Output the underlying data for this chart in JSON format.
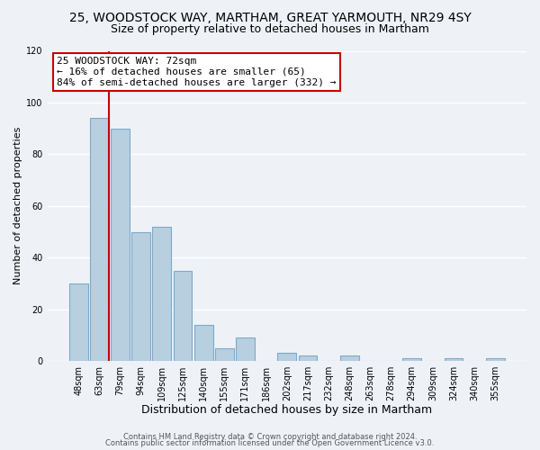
{
  "title_line1": "25, WOODSTOCK WAY, MARTHAM, GREAT YARMOUTH, NR29 4SY",
  "title_line2": "Size of property relative to detached houses in Martham",
  "xlabel": "Distribution of detached houses by size in Martham",
  "ylabel": "Number of detached properties",
  "bar_labels": [
    "48sqm",
    "63sqm",
    "79sqm",
    "94sqm",
    "109sqm",
    "125sqm",
    "140sqm",
    "155sqm",
    "171sqm",
    "186sqm",
    "202sqm",
    "217sqm",
    "232sqm",
    "248sqm",
    "263sqm",
    "278sqm",
    "294sqm",
    "309sqm",
    "324sqm",
    "340sqm",
    "355sqm"
  ],
  "bar_values": [
    30,
    94,
    90,
    50,
    52,
    35,
    14,
    5,
    9,
    0,
    3,
    2,
    0,
    2,
    0,
    0,
    1,
    0,
    1,
    0,
    1
  ],
  "bar_color": "#b8cfe0",
  "bar_edge_color": "#7eaac8",
  "ylim": [
    0,
    120
  ],
  "yticks": [
    0,
    20,
    40,
    60,
    80,
    100,
    120
  ],
  "subject_line_color": "#cc0000",
  "annotation_text_line1": "25 WOODSTOCK WAY: 72sqm",
  "annotation_text_line2": "← 16% of detached houses are smaller (65)",
  "annotation_text_line3": "84% of semi-detached houses are larger (332) →",
  "footer_line1": "Contains HM Land Registry data © Crown copyright and database right 2024.",
  "footer_line2": "Contains public sector information licensed under the Open Government Licence v3.0.",
  "background_color": "#eef2f7",
  "grid_color": "#ffffff",
  "title1_fontsize": 10,
  "title2_fontsize": 9,
  "xlabel_fontsize": 9,
  "ylabel_fontsize": 8,
  "tick_fontsize": 7,
  "annotation_fontsize": 8,
  "footer_fontsize": 6
}
